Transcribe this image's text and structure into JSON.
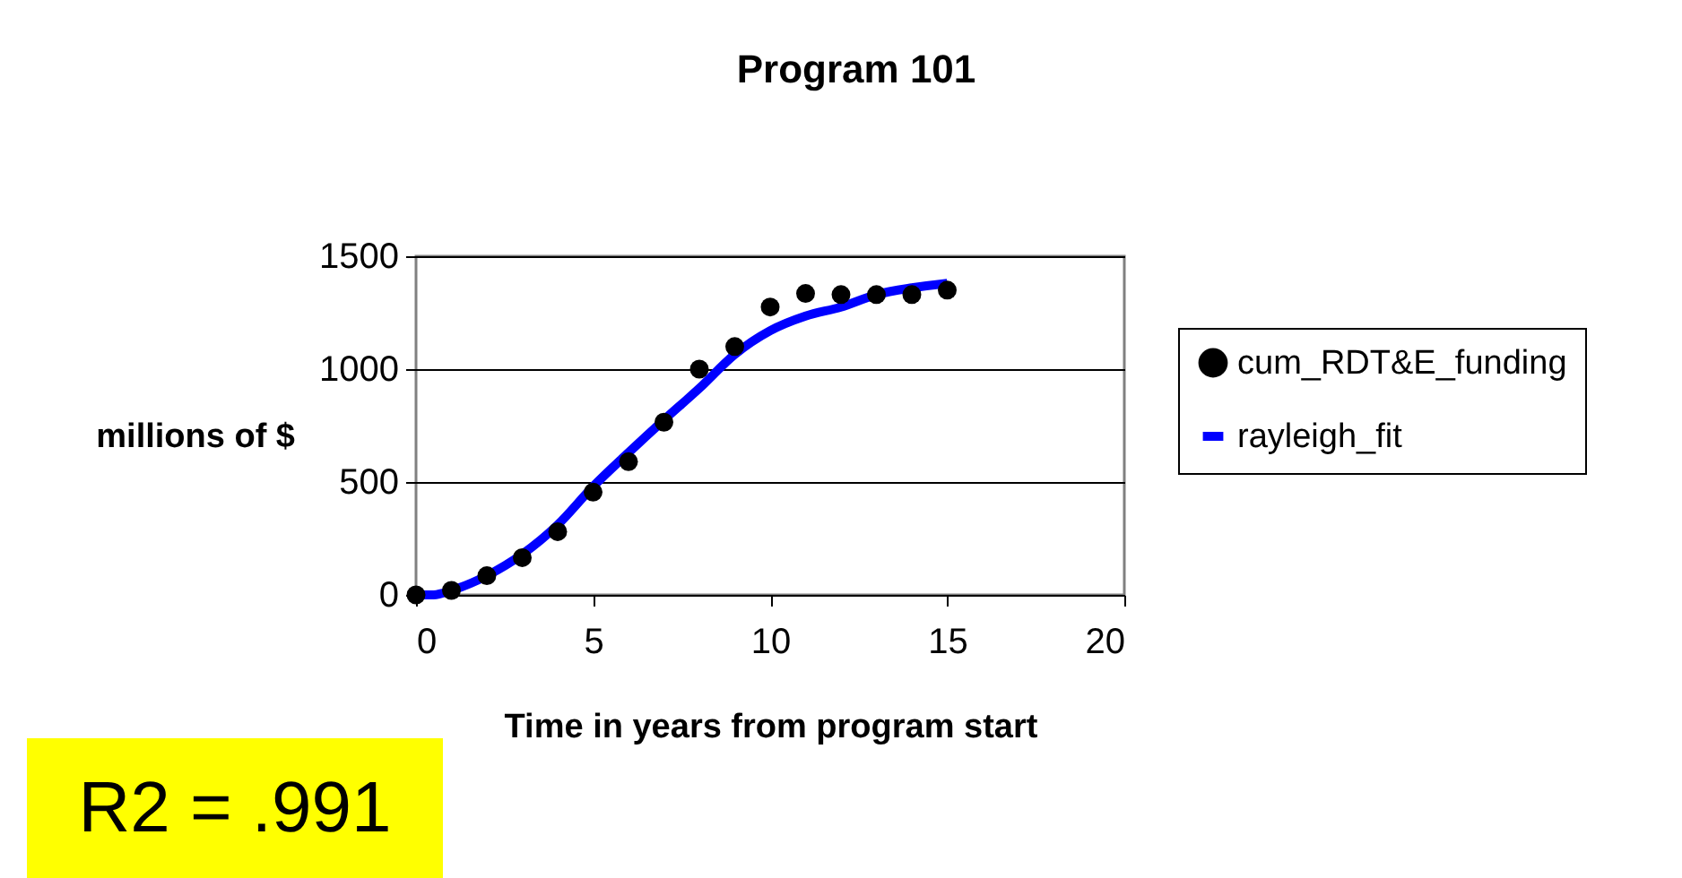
{
  "chart_data": {
    "type": "scatter",
    "title": "Program 101",
    "xlabel": "Time in years from program start",
    "ylabel": "millions of $",
    "annotations": [
      "R2 = .991"
    ],
    "xlim": [
      0,
      20
    ],
    "xticks": [
      0,
      5,
      10,
      15,
      20
    ],
    "ylim": [
      0,
      1500
    ],
    "yticks": [
      0,
      500,
      1000,
      1500
    ],
    "grid": "y",
    "legend": "right",
    "series": [
      {
        "name": "cum_RDT&E_funding",
        "marker": "circle",
        "color": "#000000",
        "x": [
          0,
          1,
          2,
          3,
          4,
          5,
          6,
          7,
          8,
          9,
          10,
          11,
          12,
          13,
          14,
          15
        ],
        "values": [
          0,
          20,
          85,
          165,
          280,
          455,
          590,
          765,
          1000,
          1100,
          1275,
          1335,
          1330,
          1330,
          1330,
          1350
        ]
      },
      {
        "name": "rayleigh_fit",
        "type": "line",
        "marker": "none",
        "line_style": "solid",
        "color": "#0000ff",
        "x": [
          0,
          0.5,
          1,
          2,
          3,
          4,
          5,
          6,
          7,
          8,
          9,
          10,
          11,
          12,
          13,
          14,
          15
        ],
        "values": [
          0,
          0,
          20,
          85,
          180,
          310,
          480,
          630,
          775,
          915,
          1065,
          1170,
          1235,
          1275,
          1330,
          1360,
          1380
        ]
      }
    ]
  }
}
